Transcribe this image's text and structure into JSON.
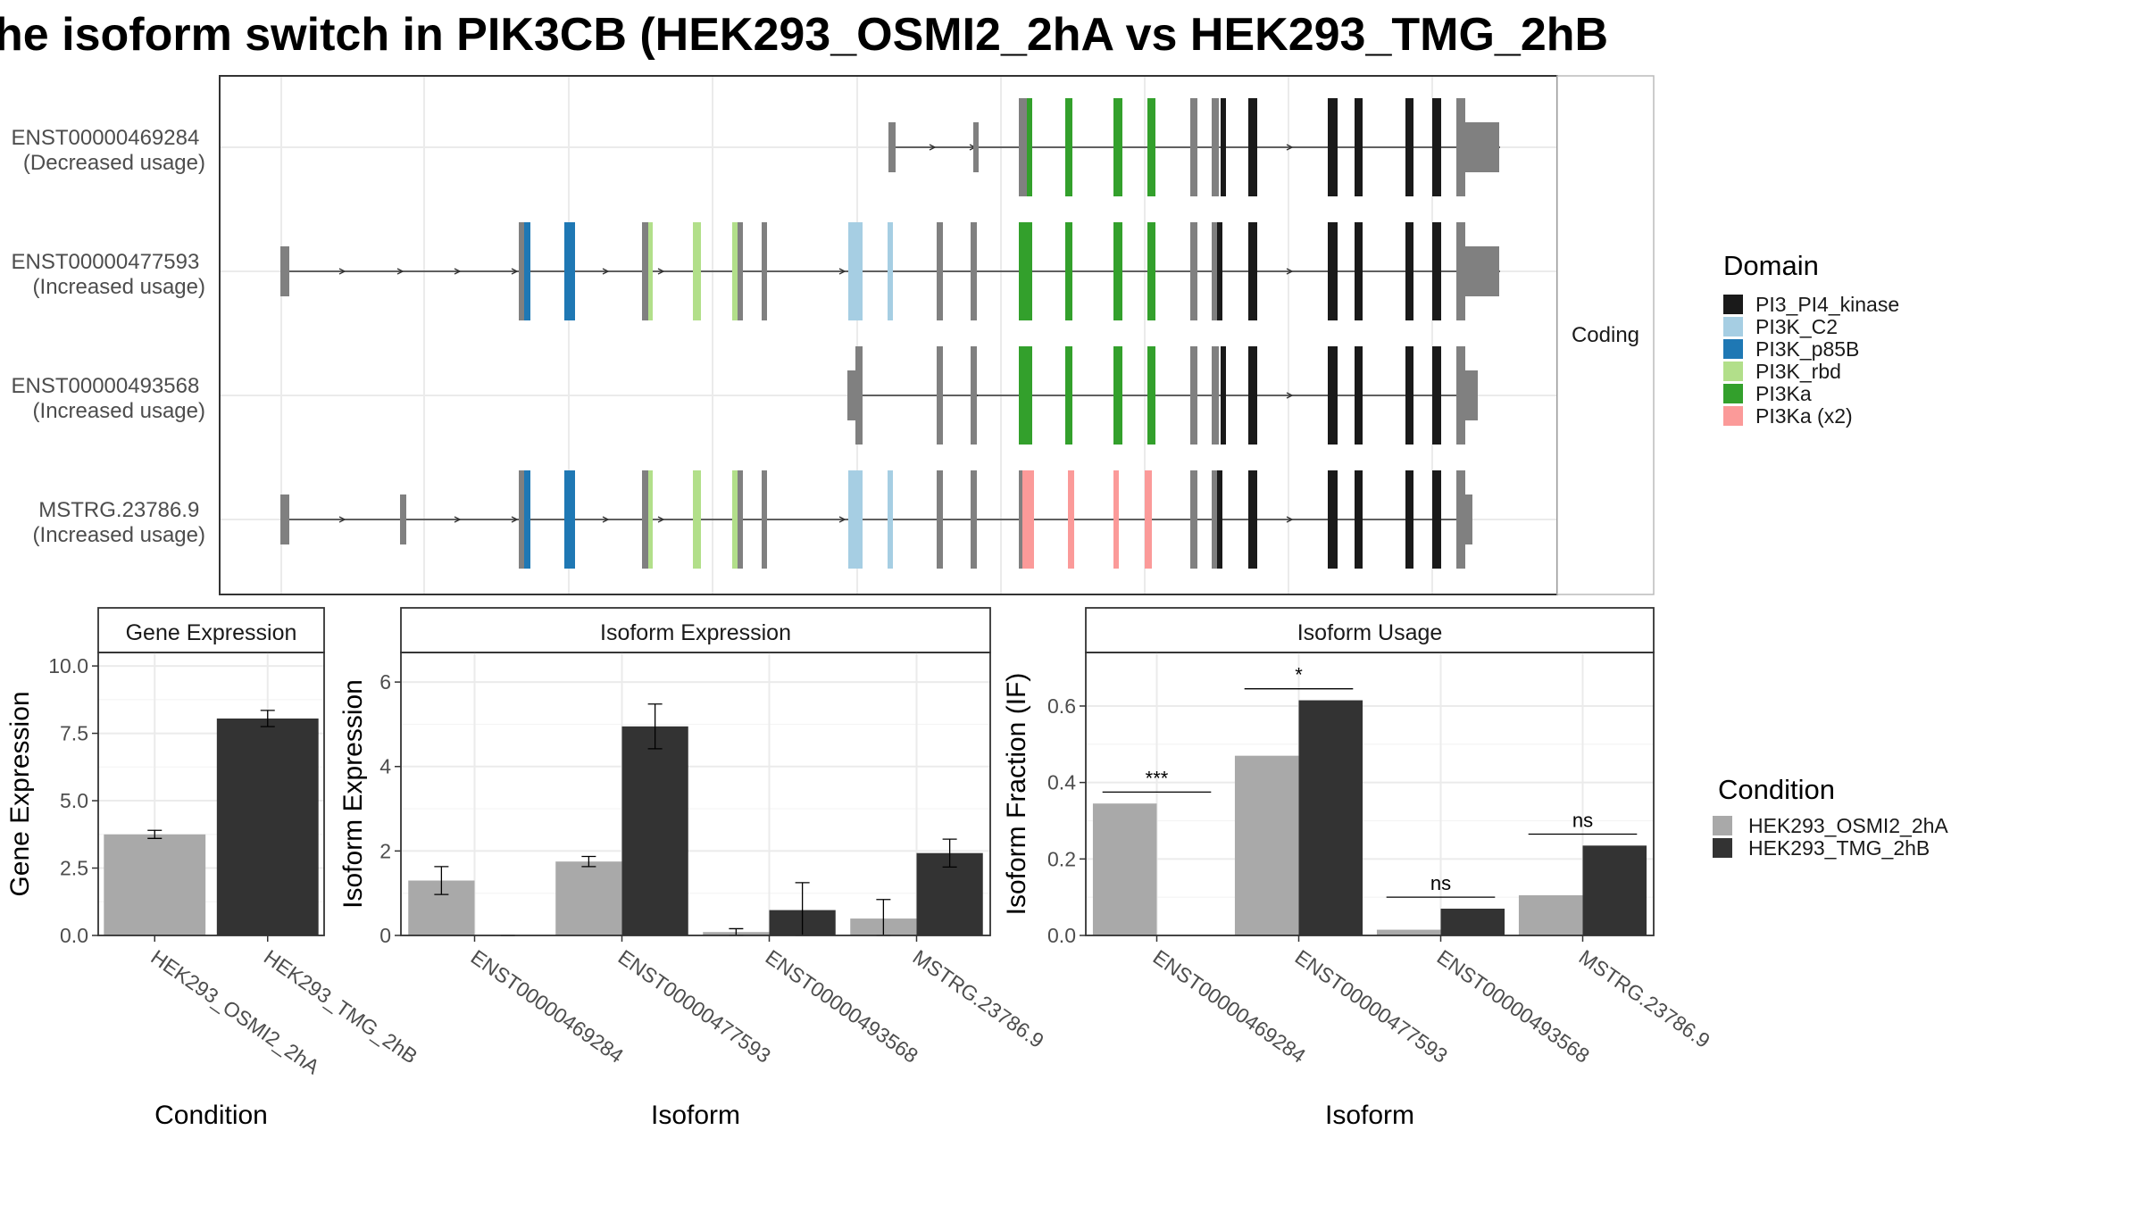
{
  "title": "he isoform switch in PIK3CB (HEK293_OSMI2_2hA vs HEK293_TMG_2hB",
  "colors": {
    "cond_a": "#a9a9a9",
    "cond_b": "#333333",
    "intron_exon": "#808080",
    "PI3_PI4_kinase": "#1a1a1a",
    "PI3K_C2": "#a6cee3",
    "PI3K_p85B": "#1f78b4",
    "PI3K_rbd": "#b2df8a",
    "PI3Ka": "#33a02c",
    "PI3Ka_x2": "#fb9a99"
  },
  "transcripts": {
    "strip_label": "Coding",
    "legend_title": "Domain",
    "legend_items": [
      {
        "label": "PI3_PI4_kinase",
        "color": "PI3_PI4_kinase"
      },
      {
        "label": "PI3K_C2",
        "color": "PI3K_C2"
      },
      {
        "label": "PI3K_p85B",
        "color": "PI3K_p85B"
      },
      {
        "label": "PI3K_rbd",
        "color": "PI3K_rbd"
      },
      {
        "label": "PI3Ka",
        "color": "PI3Ka"
      },
      {
        "label": "PI3Ka (x2)",
        "color": "PI3Ka_x2"
      }
    ],
    "rows": [
      {
        "id": "ENST00000469284",
        "usage": "(Decreased usage)"
      },
      {
        "id": "ENST00000477593",
        "usage": "(Increased usage)"
      },
      {
        "id": "ENST00000493568",
        "usage": "(Increased usage)"
      },
      {
        "id": "MSTRG.23786.9",
        "usage": "(Increased usage)"
      }
    ]
  },
  "chart_data": [
    {
      "type": "bar",
      "panel": "Gene Expression",
      "xlabel": "Condition",
      "ylabel": "Gene Expression",
      "ylim": [
        0,
        10.5
      ],
      "yticks": [
        "0.0",
        "2.5",
        "5.0",
        "7.5",
        "10.0"
      ],
      "categories": [
        "HEK293_OSMI2_2hA",
        "HEK293_TMG_2hB"
      ],
      "values": [
        3.75,
        8.05
      ],
      "errors": [
        0.15,
        0.3
      ]
    },
    {
      "type": "bar",
      "panel": "Isoform Expression",
      "xlabel": "Isoform",
      "ylabel": "Isoform Expression",
      "ylim": [
        0,
        6.7
      ],
      "yticks": [
        "0",
        "2",
        "4",
        "6"
      ],
      "categories": [
        "ENST00000469284",
        "ENST00000477593",
        "ENST00000493568",
        "MSTRG.23786.9"
      ],
      "series": [
        {
          "name": "HEK293_OSMI2_2hA",
          "values": [
            1.3,
            1.75,
            0.08,
            0.4
          ],
          "errors": [
            0.33,
            0.12,
            0.08,
            0.45
          ]
        },
        {
          "name": "HEK293_TMG_2hB",
          "values": [
            0.0,
            4.95,
            0.6,
            1.95
          ],
          "errors": [
            0.0,
            0.53,
            0.65,
            0.33
          ]
        }
      ]
    },
    {
      "type": "bar",
      "panel": "Isoform Usage",
      "xlabel": "Isoform",
      "ylabel": "Isoform Fraction (IF)",
      "ylim": [
        0,
        0.74
      ],
      "yticks": [
        "0.0",
        "0.2",
        "0.4",
        "0.6"
      ],
      "categories": [
        "ENST00000469284",
        "ENST00000477593",
        "ENST00000493568",
        "MSTRG.23786.9"
      ],
      "series": [
        {
          "name": "HEK293_OSMI2_2hA",
          "values": [
            0.345,
            0.47,
            0.015,
            0.105
          ]
        },
        {
          "name": "HEK293_TMG_2hB",
          "values": [
            0.0,
            0.615,
            0.07,
            0.235
          ]
        }
      ],
      "significance": [
        "***",
        "*",
        "ns",
        "ns"
      ]
    }
  ],
  "condition_legend": {
    "title": "Condition",
    "items": [
      {
        "label": "HEK293_OSMI2_2hA",
        "color": "cond_a"
      },
      {
        "label": "HEK293_TMG_2hB",
        "color": "cond_b"
      }
    ]
  }
}
